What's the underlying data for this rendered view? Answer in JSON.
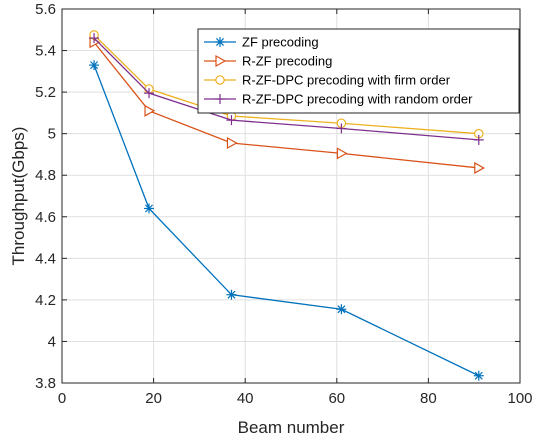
{
  "chart_data": {
    "type": "line",
    "xlabel": "Beam number",
    "ylabel": "Throughput(Gbps)",
    "xlim": [
      0,
      100
    ],
    "ylim": [
      3.8,
      5.6
    ],
    "xticks": [
      0,
      20,
      40,
      60,
      80,
      100
    ],
    "yticks": [
      3.8,
      4,
      4.2,
      4.4,
      4.6,
      4.8,
      5,
      5.2,
      5.4,
      5.6
    ],
    "xtick_labels": [
      "0",
      "20",
      "40",
      "60",
      "80",
      "100"
    ],
    "ytick_labels": [
      "3.8",
      "4",
      "4.2",
      "4.4",
      "4.6",
      "4.8",
      "5",
      "5.2",
      "5.4",
      "5.6"
    ],
    "grid": true,
    "legend_position": "top-right",
    "x": [
      7,
      19,
      37,
      61,
      91
    ],
    "series": [
      {
        "name": "ZF precoding",
        "color": "#0072BD",
        "marker": "asterisk",
        "values": [
          5.33,
          4.64,
          4.225,
          4.155,
          3.835
        ]
      },
      {
        "name": "R-ZF precoding",
        "color": "#D95319",
        "marker": "triangle-right",
        "values": [
          5.44,
          5.11,
          4.955,
          4.905,
          4.835
        ]
      },
      {
        "name": "R-ZF-DPC precoding with firm order",
        "color": "#EDB120",
        "marker": "circle",
        "values": [
          5.475,
          5.215,
          5.085,
          5.05,
          5.0
        ]
      },
      {
        "name": "R-ZF-DPC precoding with random order",
        "color": "#7E2F8E",
        "marker": "plus",
        "values": [
          5.46,
          5.195,
          5.065,
          5.025,
          4.97
        ]
      }
    ]
  }
}
